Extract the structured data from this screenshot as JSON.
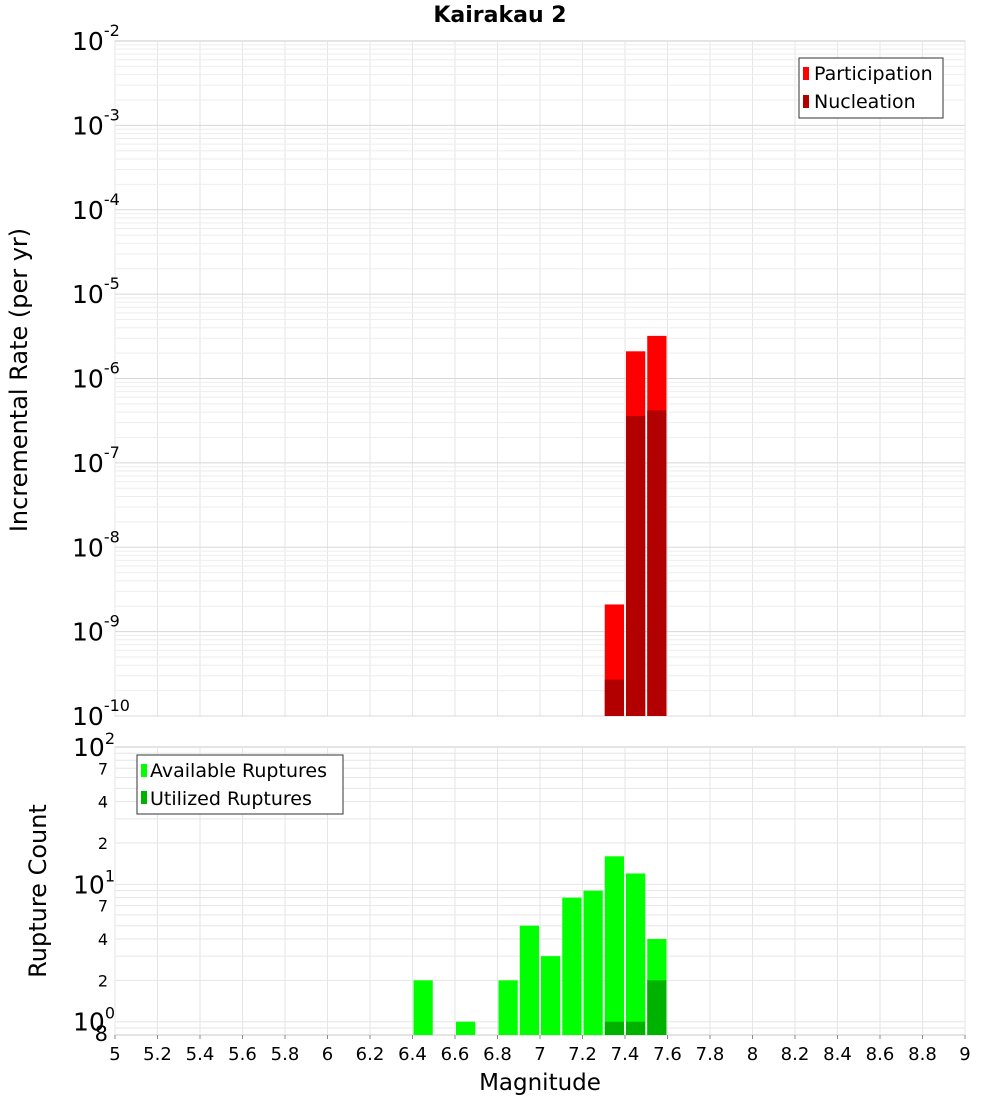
{
  "chart_data": [
    {
      "type": "bar",
      "title": "Kairakau 2",
      "xlabel": "",
      "ylabel": "Incremental Rate (per yr)",
      "yscale": "log",
      "ylim": [
        1e-10,
        0.01
      ],
      "xlim": [
        5,
        9
      ],
      "bar_width": 0.1,
      "legend_position": "top-right",
      "grid": true,
      "series": [
        {
          "name": "Participation",
          "color": "#ff0000",
          "x": [
            7.35,
            7.45,
            7.55
          ],
          "values": [
            2.1e-09,
            2.1e-06,
            3.2e-06
          ]
        },
        {
          "name": "Nucleation",
          "color": "#b20000",
          "x": [
            7.35,
            7.45,
            7.55
          ],
          "values": [
            2.7e-10,
            3.6e-07,
            4.2e-07
          ]
        }
      ]
    },
    {
      "type": "bar",
      "title": "",
      "xlabel": "Magnitude",
      "ylabel": "Rupture Count",
      "yscale": "log",
      "ylim": [
        0.8,
        100
      ],
      "xlim": [
        5,
        9
      ],
      "bar_width": 0.1,
      "legend_position": "top-left",
      "grid": true,
      "series": [
        {
          "name": "Available Ruptures",
          "color": "#00ff00",
          "x": [
            6.45,
            6.65,
            6.85,
            6.95,
            7.05,
            7.15,
            7.25,
            7.35,
            7.45,
            7.55
          ],
          "values": [
            2,
            1,
            2,
            5,
            3,
            8,
            9,
            16,
            12,
            4
          ]
        },
        {
          "name": "Utilized Ruptures",
          "color": "#00b200",
          "x": [
            7.35,
            7.45,
            7.55
          ],
          "values": [
            1,
            1,
            2
          ]
        }
      ]
    }
  ],
  "top_axis": {
    "major_ticks": [
      {
        "base": "10",
        "exp": "-2",
        "value": 0.01
      },
      {
        "base": "10",
        "exp": "-3",
        "value": 0.001
      },
      {
        "base": "10",
        "exp": "-4",
        "value": 0.0001
      },
      {
        "base": "10",
        "exp": "-5",
        "value": 1e-05
      },
      {
        "base": "10",
        "exp": "-6",
        "value": 1e-06
      },
      {
        "base": "10",
        "exp": "-7",
        "value": 1e-07
      },
      {
        "base": "10",
        "exp": "-8",
        "value": 1e-08
      },
      {
        "base": "10",
        "exp": "-9",
        "value": 1e-09
      },
      {
        "base": "10",
        "exp": "-10",
        "value": 1e-10
      }
    ]
  },
  "bottom_axis": {
    "major_ticks": [
      {
        "base": "10",
        "exp": "2",
        "value": 100
      },
      {
        "base": "10",
        "exp": "1",
        "value": 10
      },
      {
        "base": "10",
        "exp": "0",
        "value": 1
      }
    ],
    "minor_labels": [
      {
        "text": "7",
        "value": 70
      },
      {
        "text": "4",
        "value": 40
      },
      {
        "text": "2",
        "value": 20
      },
      {
        "text": "7",
        "value": 7
      },
      {
        "text": "4",
        "value": 4
      },
      {
        "text": "2",
        "value": 2
      },
      {
        "text": "8",
        "value": 0.8
      }
    ]
  },
  "x_ticks": [
    "5",
    "5.2",
    "5.4",
    "5.6",
    "5.8",
    "6",
    "6.2",
    "6.4",
    "6.6",
    "6.8",
    "7",
    "7.2",
    "7.4",
    "7.6",
    "7.8",
    "8",
    "8.2",
    "8.4",
    "8.6",
    "8.8",
    "9"
  ]
}
